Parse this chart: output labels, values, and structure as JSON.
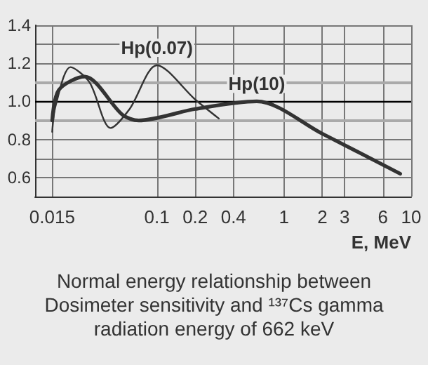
{
  "chart_data": {
    "type": "line",
    "xlabel": "E, MeV",
    "annotations": [
      "Normal energy relationship between Dosimeter sensitivity and ¹³⁷Cs gamma radiation energy of 662 keV"
    ],
    "log": "x",
    "xlim": [
      0.011,
      10
    ],
    "xticks": [
      0.015,
      0.1,
      0.2,
      0.4,
      1,
      2,
      3,
      6,
      10
    ],
    "ylim": [
      0.5,
      1.4
    ],
    "yticks": [
      {
        "value": 0.5,
        "label": null
      },
      0.6,
      {
        "value": 0.7,
        "label": null
      },
      0.8,
      {
        "value": 1.0,
        "label": "1.0"
      },
      1.2,
      {
        "value": 1.3,
        "label": null
      },
      1.4
    ],
    "grid": true,
    "legend": false,
    "marker": "none",
    "series": [
      {
        "name": "Hp(0.07)",
        "color": "#333333",
        "x": [
          0.015,
          0.016,
          0.0209,
          0.0295,
          0.0432,
          0.061,
          0.1,
          0.2,
          0.307
        ],
        "values": [
          0.84,
          0.98,
          1.18,
          1.1,
          0.86,
          0.96,
          1.19,
          1.01,
          0.91
        ]
      },
      {
        "name": "Hp(10)",
        "color": "#333333",
        "x": [
          0.015,
          0.0169,
          0.027,
          0.0535,
          0.0719,
          0.2,
          0.61,
          2,
          8.2
        ],
        "values": [
          0.9,
          1.06,
          1.13,
          0.93,
          0.9,
          0.96,
          1.0,
          0.83,
          0.62
        ]
      }
    ],
    "ref_lines": [
      {
        "axis": "y",
        "value": 0.9,
        "color": "#aaaaaa"
      },
      {
        "axis": "y",
        "value": 1.1,
        "color": "#aaaaaa"
      },
      {
        "axis": "y",
        "value": 1.0,
        "color": "#000000"
      }
    ]
  }
}
